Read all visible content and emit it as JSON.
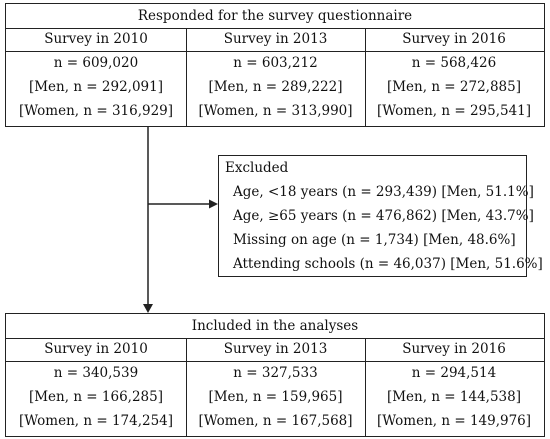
{
  "top_box": {
    "title": "Responded for the survey questionnaire",
    "surveys": [
      {
        "label": "Survey in 2010",
        "total": "n = 609,020",
        "men": "[Men, n = 292,091]",
        "women": "[Women, n = 316,929]"
      },
      {
        "label": "Survey in 2013",
        "total": "n = 603,212",
        "men": "[Men, n = 289,222]",
        "women": "[Women, n = 313,990]"
      },
      {
        "label": "Survey in 2016",
        "total": "n = 568,426",
        "men": "[Men, n = 272,885]",
        "women": "[Women, n = 295,541]"
      }
    ]
  },
  "excluded_box": {
    "title": "Excluded",
    "items": [
      "Age, <18 years (n = 293,439) [Men, 51.1%]",
      "Age, ≥65 years (n = 476,862) [Men, 43.7%]",
      "Missing on age (n = 1,734) [Men, 48.6%]",
      "Attending schools (n = 46,037) [Men, 51.6%]"
    ]
  },
  "bottom_box": {
    "title": "Included in the analyses",
    "surveys": [
      {
        "label": "Survey in 2010",
        "total": "n = 340,539",
        "men": "[Men, n = 166,285]",
        "women": "[Women, n = 174,254]"
      },
      {
        "label": "Survey in 2013",
        "total": "n = 327,533",
        "men": "[Men, n = 159,965]",
        "women": "[Women, n = 167,568]"
      },
      {
        "label": "Survey in 2016",
        "total": "n = 294,514",
        "men": "[Men, n = 144,538]",
        "women": "[Women, n = 149,976]"
      }
    ]
  }
}
